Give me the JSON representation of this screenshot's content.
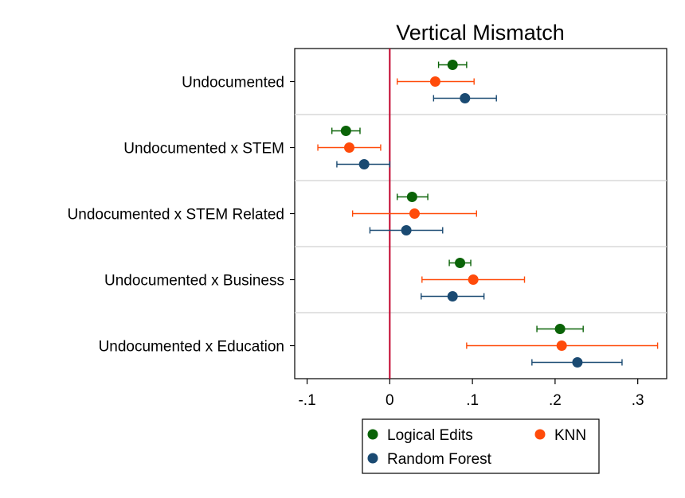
{
  "chart_data": {
    "type": "scatter",
    "title": "Vertical Mismatch",
    "categories": [
      "Undocumented",
      "Undocumented x STEM",
      "Undocumented x STEM Related",
      "Undocumented x Business",
      "Undocumented x Education"
    ],
    "xlim": [
      -0.115,
      0.335
    ],
    "xticks": [
      -0.1,
      0,
      0.1,
      0.2,
      0.3
    ],
    "xtick_labels": [
      "-.1",
      "0",
      ".1",
      ".2",
      ".3"
    ],
    "reference_line": 0,
    "reference_line_color": "#c0002a",
    "grid": "horizontal separators",
    "legend_position": "bottom",
    "series": [
      {
        "name": "Logical Edits",
        "color": "#0a6307",
        "points": [
          {
            "est": 0.076,
            "lo": 0.059,
            "hi": 0.093
          },
          {
            "est": -0.053,
            "lo": -0.07,
            "hi": -0.036
          },
          {
            "est": 0.027,
            "lo": 0.009,
            "hi": 0.046
          },
          {
            "est": 0.085,
            "lo": 0.072,
            "hi": 0.098
          },
          {
            "est": 0.206,
            "lo": 0.178,
            "hi": 0.234
          }
        ]
      },
      {
        "name": "KNN",
        "color": "#ff4b0a",
        "points": [
          {
            "est": 0.055,
            "lo": 0.009,
            "hi": 0.102
          },
          {
            "est": -0.049,
            "lo": -0.087,
            "hi": -0.011
          },
          {
            "est": 0.03,
            "lo": -0.045,
            "hi": 0.105
          },
          {
            "est": 0.101,
            "lo": 0.039,
            "hi": 0.163
          },
          {
            "est": 0.208,
            "lo": 0.093,
            "hi": 0.324
          }
        ]
      },
      {
        "name": "Random Forest",
        "color": "#1a4a72",
        "points": [
          {
            "est": 0.091,
            "lo": 0.053,
            "hi": 0.129
          },
          {
            "est": -0.031,
            "lo": -0.064,
            "hi": 0.0
          },
          {
            "est": 0.02,
            "lo": -0.024,
            "hi": 0.064
          },
          {
            "est": 0.076,
            "lo": 0.038,
            "hi": 0.114
          },
          {
            "est": 0.227,
            "lo": 0.172,
            "hi": 0.281
          }
        ]
      }
    ]
  }
}
